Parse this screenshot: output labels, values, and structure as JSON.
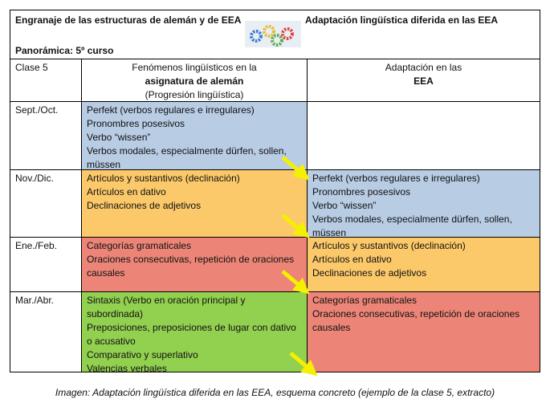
{
  "header": {
    "title_left": "Engranaje de las estructuras de alemán y de EEA",
    "title_right": "Adaptación lingüística diferida en las EEA",
    "subtitle": "Panorámica: 5º curso",
    "logo": "gears-icon"
  },
  "columns": {
    "class": "Clase 5",
    "german_line1": "Fenómenos lingüísticos en la",
    "german_line2": "asignatura de alemán",
    "german_line3": "(Progresión lingüística)",
    "eea_line1": "Adaptación en las",
    "eea_line2": "EEA"
  },
  "rows": [
    {
      "period": "Sept./Oct.",
      "german": [
        "Perfekt (verbos regulares e irregulares)",
        "Pronombres posesivos",
        "Verbo “wissen”",
        "Verbos modales, especialmente dürfen, sollen, müssen"
      ],
      "eea": []
    },
    {
      "period": "Nov./Dic.",
      "german": [
        "Artículos y sustantivos (declinación)",
        "Artículos en dativo",
        "Declinaciones de adjetivos"
      ],
      "eea": [
        "Perfekt (verbos regulares e irregulares)",
        "Pronombres posesivos",
        "Verbo “wissen”",
        "Verbos modales, especialmente dürfen, sollen, müssen"
      ]
    },
    {
      "period": "Ene./Feb.",
      "german": [
        "Categorías gramaticales",
        "Oraciones consecutivas, repetición de oraciones causales"
      ],
      "eea": [
        "Artículos y sustantivos (declinación)",
        "Artículos en dativo",
        "Declinaciones de adjetivos"
      ]
    },
    {
      "period": "Mar./Abr.",
      "german": [
        "Sintaxis (Verbo en oración principal y subordinada)",
        "Preposiciones, preposiciones de lugar con dativo o acusativo",
        "Comparativo y superlativo",
        "Valencias verbales"
      ],
      "eea": [
        "Categorías gramaticales",
        "Oraciones consecutivas, repetición de oraciones causales"
      ]
    }
  ],
  "caption": "Imagen: Adaptación lingüística diferida en las EEA, esquema concreto (ejemplo de la clase 5, extracto)",
  "colors": {
    "blue": "#b8cce4",
    "orange": "#fcc96a",
    "red": "#ec8577",
    "green": "#92d050",
    "arrow": "#f5f000"
  }
}
